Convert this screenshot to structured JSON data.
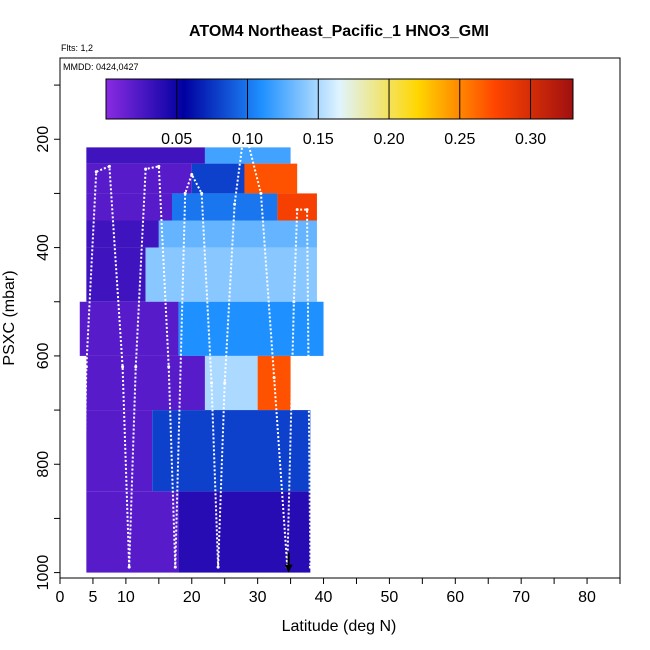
{
  "chart_data": {
    "type": "heatmap",
    "title": "ATOM4 Northeast_Pacific_1 HNO3_GMI",
    "annotations": [
      "Flts: 1,2",
      "MMDD: 0424,0427"
    ],
    "xlabel": "Latitude (deg N)",
    "ylabel": "PSXC (mbar)",
    "xlim": [
      0,
      85
    ],
    "ylim": [
      1010,
      50
    ],
    "x_ticks": [
      0,
      5,
      10,
      20,
      30,
      40,
      50,
      60,
      70,
      80
    ],
    "y_ticks": [
      200,
      400,
      600,
      800,
      1000
    ],
    "colorbar": {
      "ticks": [
        0.05,
        0.1,
        0.15,
        0.2,
        0.25,
        0.3
      ],
      "tick_labels": [
        "0.05",
        "0.10",
        "0.15",
        "0.20",
        "0.25",
        "0.30"
      ],
      "range": [
        0.0,
        0.33
      ],
      "colors": [
        "#8a2be2",
        "#0000a0",
        "#1e90ff",
        "#e0f4ff",
        "#ffd700",
        "#ff4500",
        "#a01010"
      ]
    },
    "grid": false,
    "legend": "colorbar-top-inside",
    "flight_track": [
      {
        "lat": 3.4,
        "p": 990
      },
      {
        "lat": 4.0,
        "p": 620
      },
      {
        "lat": 5.5,
        "p": 260
      },
      {
        "lat": 7.5,
        "p": 250
      },
      {
        "lat": 9.5,
        "p": 620
      },
      {
        "lat": 10.5,
        "p": 990
      },
      {
        "lat": 11.5,
        "p": 620
      },
      {
        "lat": 13.0,
        "p": 255
      },
      {
        "lat": 15.0,
        "p": 250
      },
      {
        "lat": 16.5,
        "p": 620
      },
      {
        "lat": 17.5,
        "p": 990
      },
      {
        "lat": 19.0,
        "p": 300
      },
      {
        "lat": 20.0,
        "p": 265
      },
      {
        "lat": 21.5,
        "p": 300
      },
      {
        "lat": 23.0,
        "p": 650
      },
      {
        "lat": 24.0,
        "p": 990
      },
      {
        "lat": 25.0,
        "p": 650
      },
      {
        "lat": 26.5,
        "p": 320
      },
      {
        "lat": 28.0,
        "p": 180
      },
      {
        "lat": 30.5,
        "p": 300
      },
      {
        "lat": 32.5,
        "p": 640
      },
      {
        "lat": 34.5,
        "p": 990
      },
      {
        "lat": 35.5,
        "p": 500
      },
      {
        "lat": 36.0,
        "p": 330
      },
      {
        "lat": 37.5,
        "p": 330
      },
      {
        "lat": 38.0,
        "p": 990
      }
    ],
    "marker": {
      "lat": 34.7,
      "p": 1000,
      "type": "down-arrow"
    },
    "cells": [
      {
        "y": [
          215,
          245
        ],
        "x": [
          4,
          22
        ],
        "v": 0.03
      },
      {
        "y": [
          215,
          245
        ],
        "x": [
          22,
          35
        ],
        "v": 0.12
      },
      {
        "y": [
          245,
          300
        ],
        "x": [
          4,
          20
        ],
        "v": 0.02
      },
      {
        "y": [
          245,
          300
        ],
        "x": [
          20,
          28
        ],
        "v": 0.08
      },
      {
        "y": [
          245,
          300
        ],
        "x": [
          28,
          36
        ],
        "v": 0.27
      },
      {
        "y": [
          300,
          350
        ],
        "x": [
          4,
          17
        ],
        "v": 0.02
      },
      {
        "y": [
          300,
          350
        ],
        "x": [
          17,
          33
        ],
        "v": 0.1
      },
      {
        "y": [
          300,
          350
        ],
        "x": [
          33,
          39
        ],
        "v": 0.28
      },
      {
        "y": [
          350,
          400
        ],
        "x": [
          4,
          15
        ],
        "v": 0.03
      },
      {
        "y": [
          350,
          400
        ],
        "x": [
          15,
          39
        ],
        "v": 0.13
      },
      {
        "y": [
          400,
          500
        ],
        "x": [
          4,
          13
        ],
        "v": 0.03
      },
      {
        "y": [
          400,
          500
        ],
        "x": [
          13,
          39
        ],
        "v": 0.14
      },
      {
        "y": [
          500,
          600
        ],
        "x": [
          3,
          18
        ],
        "v": 0.02
      },
      {
        "y": [
          500,
          600
        ],
        "x": [
          18,
          40
        ],
        "v": 0.11
      },
      {
        "y": [
          600,
          700
        ],
        "x": [
          4,
          22
        ],
        "v": 0.02
      },
      {
        "y": [
          600,
          700
        ],
        "x": [
          22,
          30
        ],
        "v": 0.15
      },
      {
        "y": [
          600,
          700
        ],
        "x": [
          30,
          35
        ],
        "v": 0.27
      },
      {
        "y": [
          700,
          850
        ],
        "x": [
          4,
          14
        ],
        "v": 0.02
      },
      {
        "y": [
          700,
          850
        ],
        "x": [
          14,
          38
        ],
        "v": 0.08
      },
      {
        "y": [
          850,
          1000
        ],
        "x": [
          4,
          18
        ],
        "v": 0.02
      },
      {
        "y": [
          850,
          1000
        ],
        "x": [
          18,
          38
        ],
        "v": 0.04
      }
    ]
  }
}
